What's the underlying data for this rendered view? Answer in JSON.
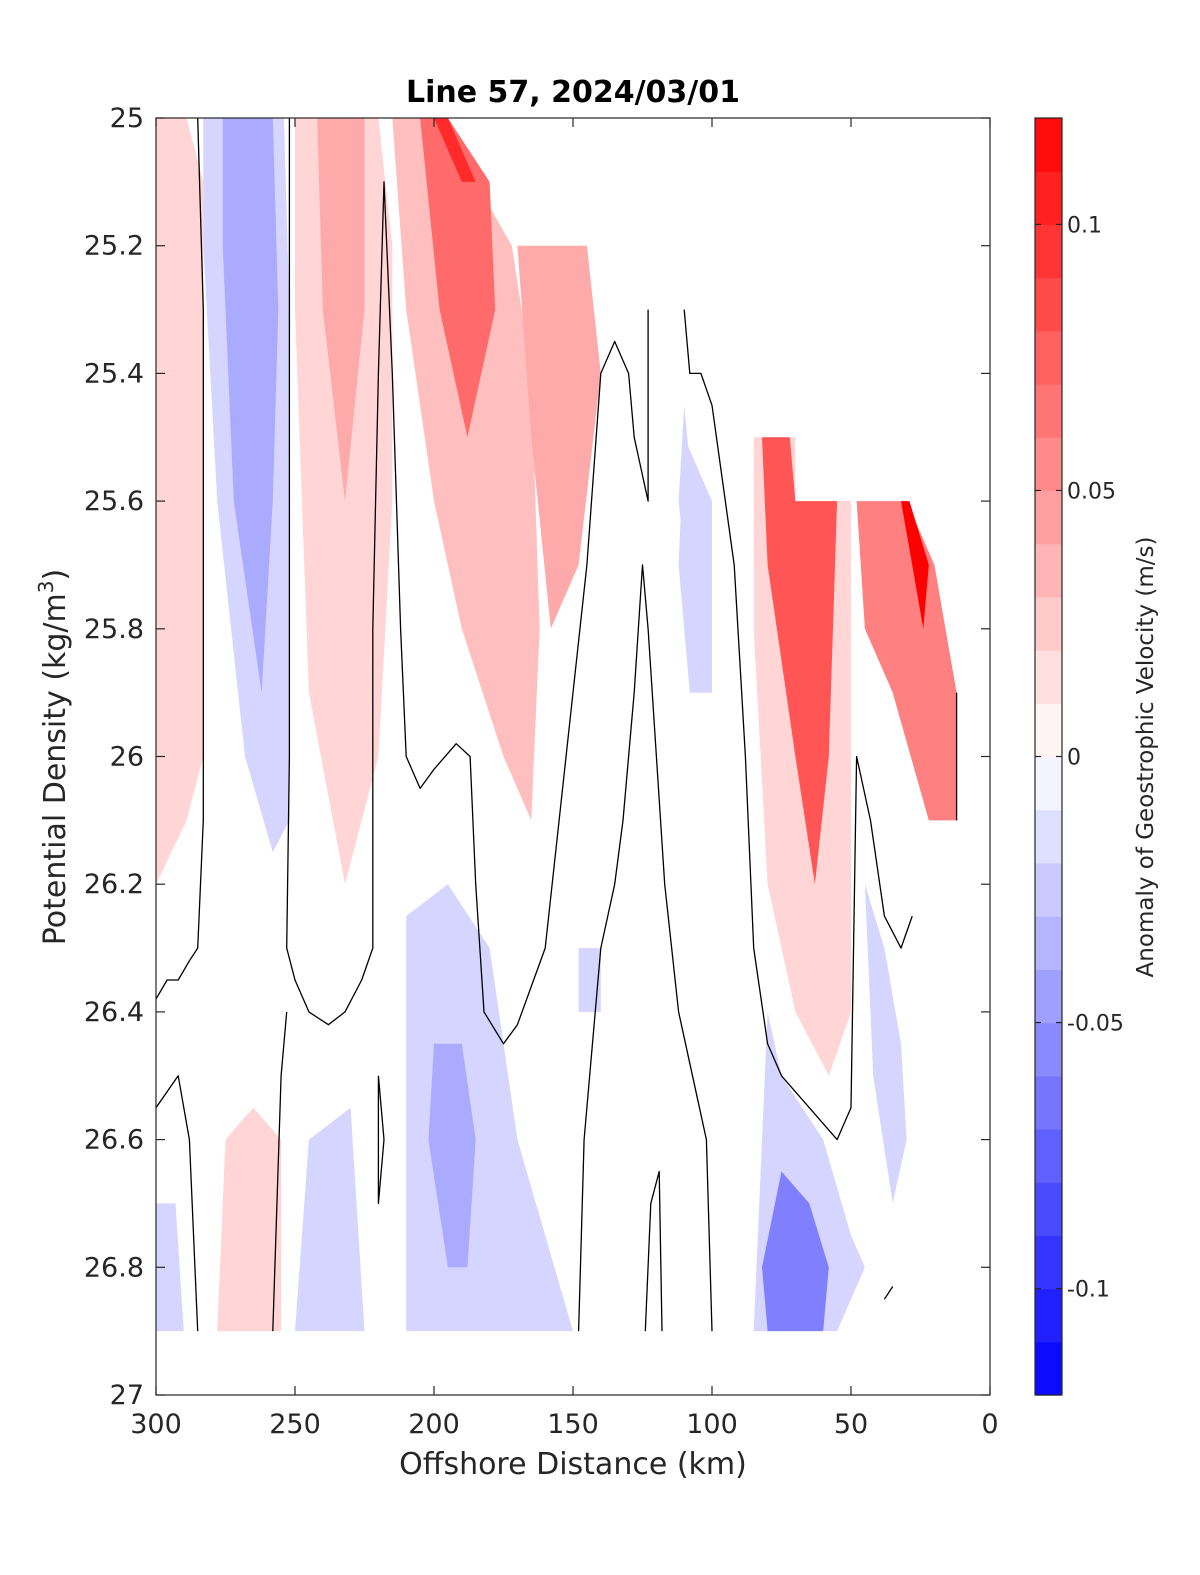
{
  "chart_data": {
    "type": "heatmap",
    "subtype": "filled contour section",
    "title": "Line 57, 2024/03/01",
    "xlabel": "Offshore Distance (km)",
    "ylabel_main": "Potential Density (kg/m",
    "ylabel_sup": "3",
    "ylabel_close": ")",
    "xlim": [
      300,
      0
    ],
    "x_reversed": true,
    "ylim": [
      25,
      27
    ],
    "y_reversed": true,
    "x_ticks": [
      {
        "value": 300,
        "label": "300"
      },
      {
        "value": 250,
        "label": "250"
      },
      {
        "value": 200,
        "label": "200"
      },
      {
        "value": 150,
        "label": "150"
      },
      {
        "value": 100,
        "label": "100"
      },
      {
        "value": 50,
        "label": "50"
      },
      {
        "value": 0,
        "label": "0"
      }
    ],
    "y_ticks": [
      {
        "value": 25,
        "label": "25"
      },
      {
        "value": 25.2,
        "label": "25.2"
      },
      {
        "value": 25.4,
        "label": "25.4"
      },
      {
        "value": 25.6,
        "label": "25.6"
      },
      {
        "value": 25.8,
        "label": "25.8"
      },
      {
        "value": 26,
        "label": "26"
      },
      {
        "value": 26.2,
        "label": "26.2"
      },
      {
        "value": 26.4,
        "label": "26.4"
      },
      {
        "value": 26.6,
        "label": "26.6"
      },
      {
        "value": 26.8,
        "label": "26.8"
      },
      {
        "value": 27,
        "label": "27"
      }
    ],
    "colorbar": {
      "label": "Anomaly of Geostrophic Velocity (m/s)",
      "range": [
        -0.12,
        0.12
      ],
      "levels": 24,
      "colormap": "blue-white-red",
      "low_color": "#0000ff",
      "mid_color": "#ffffff",
      "high_color": "#ff0000",
      "ticks": [
        {
          "value": 0.1,
          "label": "0.1"
        },
        {
          "value": 0.05,
          "label": "0.05"
        },
        {
          "value": 0,
          "label": "0"
        },
        {
          "value": -0.05,
          "label": "-0.05"
        },
        {
          "value": -0.1,
          "label": "-0.1"
        }
      ]
    },
    "data_bottom_density": 26.9,
    "surface_boundary": [
      [
        300,
        25.0
      ],
      [
        180,
        25.0
      ],
      [
        180,
        25.1
      ],
      [
        170,
        25.1
      ],
      [
        170,
        25.2
      ],
      [
        135,
        25.2
      ],
      [
        125,
        25.3
      ],
      [
        100,
        25.4
      ],
      [
        85,
        25.5
      ],
      [
        70,
        25.5
      ],
      [
        70,
        25.6
      ],
      [
        30,
        25.6
      ],
      [
        25,
        25.7
      ],
      [
        20,
        25.7
      ],
      [
        12,
        25.9
      ],
      [
        12,
        26.1
      ]
    ],
    "anomaly_regions": [
      {
        "value": 0.02,
        "outline": [
          [
            300,
            25.0
          ],
          [
            289,
            25.0
          ],
          [
            283,
            25.1
          ],
          [
            283,
            26.0
          ],
          [
            289,
            26.1
          ],
          [
            300,
            26.2
          ]
        ]
      },
      {
        "value": -0.02,
        "outline": [
          [
            283,
            25.0
          ],
          [
            254,
            25.0
          ],
          [
            252,
            25.3
          ],
          [
            252,
            26.1
          ],
          [
            258,
            26.15
          ],
          [
            268,
            26.0
          ],
          [
            278,
            25.6
          ],
          [
            283,
            25.2
          ]
        ]
      },
      {
        "value": -0.04,
        "outline": [
          [
            276,
            25.0
          ],
          [
            258,
            25.0
          ],
          [
            256,
            25.3
          ],
          [
            258,
            25.6
          ],
          [
            262,
            25.9
          ],
          [
            272,
            25.6
          ],
          [
            276,
            25.2
          ]
        ]
      },
      {
        "value": 0.02,
        "outline": [
          [
            250,
            25.0
          ],
          [
            220,
            25.0
          ],
          [
            215,
            25.2
          ],
          [
            215,
            25.6
          ],
          [
            220,
            26.0
          ],
          [
            232,
            26.2
          ],
          [
            245,
            25.9
          ],
          [
            250,
            25.3
          ]
        ]
      },
      {
        "value": 0.04,
        "outline": [
          [
            242,
            25.0
          ],
          [
            225,
            25.0
          ],
          [
            225,
            25.3
          ],
          [
            232,
            25.6
          ],
          [
            240,
            25.3
          ]
        ]
      },
      {
        "value": 0.03,
        "outline": [
          [
            215,
            25.0
          ],
          [
            195,
            25.0
          ],
          [
            185,
            25.1
          ],
          [
            172,
            25.2
          ],
          [
            165,
            25.4
          ],
          [
            162,
            25.8
          ],
          [
            165,
            26.1
          ],
          [
            175,
            26.0
          ],
          [
            190,
            25.8
          ],
          [
            200,
            25.6
          ],
          [
            210,
            25.3
          ]
        ]
      },
      {
        "value": 0.07,
        "outline": [
          [
            205,
            25.0
          ],
          [
            195,
            25.0
          ],
          [
            180,
            25.1
          ],
          [
            178,
            25.3
          ],
          [
            188,
            25.5
          ],
          [
            198,
            25.3
          ]
        ]
      },
      {
        "value": 0.1,
        "outline": [
          [
            200,
            25.0
          ],
          [
            195,
            25.0
          ],
          [
            185,
            25.1
          ],
          [
            190,
            25.1
          ]
        ]
      },
      {
        "value": 0.04,
        "outline": [
          [
            170,
            25.2
          ],
          [
            145,
            25.2
          ],
          [
            140,
            25.4
          ],
          [
            148,
            25.7
          ],
          [
            158,
            25.8
          ],
          [
            165,
            25.5
          ]
        ]
      },
      {
        "value": -0.02,
        "outline": [
          [
            110,
            25.5
          ],
          [
            100,
            25.6
          ],
          [
            100,
            25.9
          ],
          [
            108,
            25.9
          ],
          [
            112,
            25.7
          ]
        ]
      },
      {
        "value": 0.02,
        "outline": [
          [
            85,
            25.5
          ],
          [
            70,
            25.5
          ],
          [
            70,
            25.6
          ],
          [
            50,
            25.6
          ],
          [
            50,
            26.4
          ],
          [
            58,
            26.5
          ],
          [
            70,
            26.4
          ],
          [
            80,
            26.2
          ],
          [
            85,
            25.8
          ]
        ]
      },
      {
        "value": 0.08,
        "outline": [
          [
            82,
            25.5
          ],
          [
            72,
            25.5
          ],
          [
            70,
            25.6
          ],
          [
            55,
            25.6
          ],
          [
            58,
            26.0
          ],
          [
            63,
            26.2
          ],
          [
            70,
            26.0
          ],
          [
            80,
            25.7
          ]
        ]
      },
      {
        "value": 0.06,
        "outline": [
          [
            48,
            25.6
          ],
          [
            30,
            25.6
          ],
          [
            20,
            25.7
          ],
          [
            12,
            25.9
          ],
          [
            12,
            26.1
          ],
          [
            22,
            26.1
          ],
          [
            35,
            25.9
          ],
          [
            45,
            25.8
          ]
        ]
      },
      {
        "value": 0.12,
        "outline": [
          [
            32,
            25.6
          ],
          [
            29,
            25.6
          ],
          [
            22,
            25.7
          ],
          [
            24,
            25.8
          ],
          [
            28,
            25.7
          ]
        ]
      },
      {
        "value": -0.02,
        "outline": [
          [
            210,
            26.25
          ],
          [
            195,
            26.2
          ],
          [
            180,
            26.3
          ],
          [
            170,
            26.6
          ],
          [
            160,
            26.75
          ],
          [
            150,
            26.9
          ],
          [
            210,
            26.9
          ]
        ]
      },
      {
        "value": -0.04,
        "outline": [
          [
            200,
            26.45
          ],
          [
            190,
            26.45
          ],
          [
            185,
            26.6
          ],
          [
            188,
            26.8
          ],
          [
            195,
            26.8
          ],
          [
            202,
            26.6
          ]
        ]
      },
      {
        "value": -0.02,
        "outline": [
          [
            148,
            26.3
          ],
          [
            140,
            26.3
          ],
          [
            140,
            26.4
          ],
          [
            148,
            26.4
          ]
        ]
      },
      {
        "value": -0.02,
        "outline": [
          [
            80,
            26.4
          ],
          [
            75,
            26.5
          ],
          [
            60,
            26.6
          ],
          [
            50,
            26.75
          ],
          [
            45,
            26.8
          ],
          [
            55,
            26.9
          ],
          [
            85,
            26.9
          ]
        ]
      },
      {
        "value": -0.06,
        "outline": [
          [
            75,
            26.65
          ],
          [
            65,
            26.7
          ],
          [
            58,
            26.8
          ],
          [
            60,
            26.9
          ],
          [
            80,
            26.9
          ],
          [
            82,
            26.8
          ]
        ]
      },
      {
        "value": -0.02,
        "outline": [
          [
            45,
            26.2
          ],
          [
            38,
            26.3
          ],
          [
            32,
            26.45
          ],
          [
            30,
            26.6
          ],
          [
            35,
            26.7
          ],
          [
            42,
            26.5
          ]
        ]
      },
      {
        "value": -0.02,
        "outline": [
          [
            300,
            26.7
          ],
          [
            293,
            26.7
          ],
          [
            290,
            26.9
          ],
          [
            300,
            26.9
          ]
        ]
      },
      {
        "value": 0.02,
        "outline": [
          [
            265,
            26.55
          ],
          [
            255,
            26.6
          ],
          [
            255,
            26.9
          ],
          [
            278,
            26.9
          ],
          [
            275,
            26.6
          ]
        ]
      },
      {
        "value": -0.02,
        "outline": [
          [
            245,
            26.6
          ],
          [
            230,
            26.55
          ],
          [
            225,
            26.9
          ],
          [
            250,
            26.9
          ]
        ]
      },
      {
        "value": -0.02,
        "outline": [
          [
            110,
            25.45
          ],
          [
            100,
            25.9
          ],
          [
            105,
            25.9
          ],
          [
            112,
            25.6
          ]
        ]
      }
    ],
    "zero_contours": [
      [
        [
          285,
          25.0
        ],
        [
          283,
          25.3
        ],
        [
          283,
          26.1
        ],
        [
          285,
          26.3
        ],
        [
          288,
          26.32
        ],
        [
          292,
          26.35
        ],
        [
          296,
          26.35
        ],
        [
          300,
          26.38
        ]
      ],
      [
        [
          252,
          25.0
        ],
        [
          252,
          26.0
        ],
        [
          253,
          26.3
        ],
        [
          250,
          26.35
        ],
        [
          245,
          26.4
        ],
        [
          238,
          26.42
        ],
        [
          232,
          26.4
        ],
        [
          226,
          26.35
        ],
        [
          222,
          26.3
        ],
        [
          222,
          25.8
        ],
        [
          220,
          25.4
        ],
        [
          218,
          25.1
        ],
        [
          215,
          25.4
        ],
        [
          212,
          25.8
        ],
        [
          210,
          26.0
        ],
        [
          205,
          26.05
        ],
        [
          200,
          26.02
        ],
        [
          192,
          25.98
        ],
        [
          187,
          26.0
        ],
        [
          185,
          26.2
        ],
        [
          182,
          26.4
        ],
        [
          175,
          26.45
        ],
        [
          170,
          26.42
        ],
        [
          160,
          26.3
        ],
        [
          155,
          26.1
        ],
        [
          150,
          25.9
        ],
        [
          145,
          25.7
        ],
        [
          140,
          25.4
        ],
        [
          135,
          25.35
        ],
        [
          130,
          25.4
        ],
        [
          128,
          25.5
        ],
        [
          123,
          25.6
        ],
        [
          123,
          25.3
        ]
      ],
      [
        [
          300,
          26.55
        ],
        [
          292,
          26.5
        ],
        [
          288,
          26.6
        ],
        [
          285,
          26.9
        ]
      ],
      [
        [
          258,
          26.9
        ],
        [
          255,
          26.5
        ],
        [
          253,
          26.4
        ]
      ],
      [
        [
          220,
          26.5
        ],
        [
          220,
          26.7
        ],
        [
          218,
          26.6
        ],
        [
          220,
          26.5
        ]
      ],
      [
        [
          148,
          26.9
        ],
        [
          146,
          26.6
        ],
        [
          140,
          26.3
        ],
        [
          135,
          26.2
        ],
        [
          132,
          26.1
        ],
        [
          128,
          25.9
        ],
        [
          125,
          25.7
        ],
        [
          123,
          25.8
        ],
        [
          120,
          26.0
        ],
        [
          117,
          26.2
        ],
        [
          112,
          26.4
        ],
        [
          107,
          26.5
        ],
        [
          102,
          26.6
        ],
        [
          100,
          26.9
        ]
      ],
      [
        [
          124,
          26.9
        ],
        [
          122,
          26.7
        ],
        [
          119,
          26.65
        ],
        [
          118,
          26.9
        ]
      ],
      [
        [
          110,
          25.3
        ],
        [
          108,
          25.4
        ],
        [
          104,
          25.4
        ],
        [
          100,
          25.45
        ],
        [
          92,
          25.7
        ],
        [
          88,
          26.0
        ],
        [
          85,
          26.3
        ],
        [
          80,
          26.45
        ],
        [
          75,
          26.5
        ],
        [
          65,
          26.55
        ],
        [
          55,
          26.6
        ],
        [
          50,
          26.55
        ],
        [
          48,
          26.0
        ],
        [
          43,
          26.1
        ],
        [
          38,
          26.25
        ],
        [
          32,
          26.3
        ],
        [
          28,
          26.25
        ]
      ],
      [
        [
          12,
          25.9
        ],
        [
          12,
          26.1
        ]
      ],
      [
        [
          38,
          26.85
        ],
        [
          35,
          26.83
        ]
      ]
    ]
  }
}
